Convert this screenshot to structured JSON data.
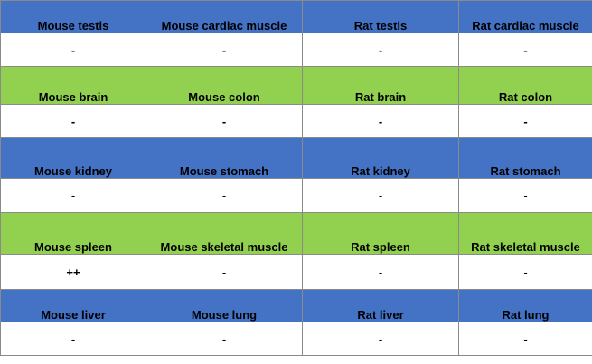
{
  "colors": {
    "blue": "#4472C4",
    "green": "#92D050",
    "white": "#FFFFFF"
  },
  "rows": [
    {
      "color": "blue",
      "labels": [
        "Mouse testis",
        "Mouse cardiac muscle",
        "Rat testis",
        "Rat cardiac muscle"
      ],
      "values": [
        "-",
        "-",
        "-",
        "-"
      ],
      "bold": true
    },
    {
      "color": "green",
      "labels": [
        "Mouse brain",
        "Mouse colon",
        "Rat brain",
        "Rat colon"
      ],
      "values": [
        "-",
        "-",
        "-",
        "-"
      ],
      "bold": true
    },
    {
      "color": "blue",
      "labels": [
        "Mouse kidney",
        "Mouse stomach",
        "Rat kidney",
        "Rat stomach"
      ],
      "values": [
        "-",
        "-",
        "-",
        "-"
      ],
      "bold": false
    },
    {
      "color": "green",
      "labels": [
        "Mouse spleen",
        "Mouse skeletal muscle",
        "Rat spleen",
        "Rat skeletal muscle"
      ],
      "values": [
        "++",
        "-",
        "-",
        "-"
      ],
      "bold": false,
      "bold_cells": [
        0
      ]
    },
    {
      "color": "blue",
      "labels": [
        "Mouse liver",
        "Mouse lung",
        "Rat liver",
        "Rat lung"
      ],
      "values": [
        "-",
        "-",
        "-",
        "-"
      ],
      "bold": true
    }
  ]
}
